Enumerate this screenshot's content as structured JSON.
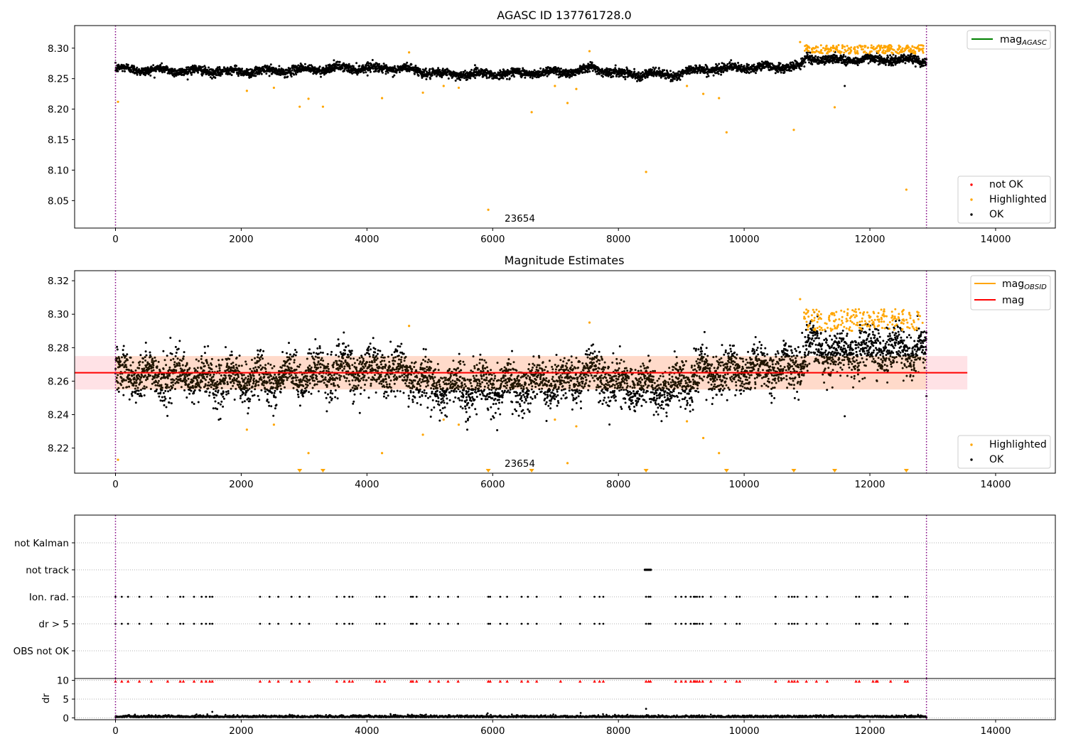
{
  "chart_data": [
    {
      "type": "scatter",
      "title": "AGASC ID 137761728.0",
      "xlim": [
        -650,
        14950
      ],
      "ylim": [
        8.005,
        8.337
      ],
      "xticks": [
        0,
        2000,
        4000,
        6000,
        8000,
        10000,
        12000,
        14000
      ],
      "yticks": [
        8.05,
        8.1,
        8.15,
        8.2,
        8.25,
        8.3
      ],
      "vlines": [
        0,
        12900
      ],
      "annotation": {
        "text": "23654",
        "x": 6200,
        "y": 8.015
      },
      "legend_lines": [
        {
          "label": "mag",
          "sub": "AGASC",
          "color": "#008000"
        }
      ],
      "legend_points": [
        {
          "label": "not OK",
          "color": "#ff0000"
        },
        {
          "label": "Highlighted",
          "color": "#ffa500"
        },
        {
          "label": "OK",
          "color": "#000000"
        }
      ],
      "ok_band": {
        "x_start": 0,
        "x_end": 12900,
        "trend": [
          [
            0,
            8.266
          ],
          [
            1500,
            8.262
          ],
          [
            2500,
            8.262
          ],
          [
            3700,
            8.268
          ],
          [
            4600,
            8.266
          ],
          [
            5200,
            8.257
          ],
          [
            6500,
            8.259
          ],
          [
            7300,
            8.262
          ],
          [
            7600,
            8.268
          ],
          [
            8000,
            8.258
          ],
          [
            8500,
            8.258
          ],
          [
            8800,
            8.255
          ],
          [
            9300,
            8.265
          ],
          [
            10000,
            8.268
          ],
          [
            10900,
            8.27
          ],
          [
            11000,
            8.285
          ],
          [
            11400,
            8.28
          ],
          [
            12000,
            8.282
          ],
          [
            12900,
            8.28
          ]
        ],
        "spread": 0.0065
      },
      "ok_points": [
        [
          11600,
          8.238
        ]
      ],
      "highlighted": [
        [
          40,
          8.212
        ],
        [
          2090,
          8.23
        ],
        [
          2520,
          8.235
        ],
        [
          2930,
          8.204
        ],
        [
          3070,
          8.217
        ],
        [
          3300,
          8.204
        ],
        [
          4240,
          8.218
        ],
        [
          4670,
          8.293
        ],
        [
          4890,
          8.227
        ],
        [
          5220,
          8.238
        ],
        [
          5460,
          8.235
        ],
        [
          5930,
          8.035
        ],
        [
          6620,
          8.195
        ],
        [
          6990,
          8.238
        ],
        [
          7190,
          8.21
        ],
        [
          7330,
          8.233
        ],
        [
          7540,
          8.295
        ],
        [
          8440,
          8.097
        ],
        [
          9090,
          8.238
        ],
        [
          9350,
          8.225
        ],
        [
          9600,
          8.218
        ],
        [
          9720,
          8.162
        ],
        [
          10790,
          8.166
        ],
        [
          10890,
          8.31
        ],
        [
          11440,
          8.203
        ],
        [
          12580,
          8.068
        ]
      ],
      "highlighted_cluster": {
        "x_start": 10950,
        "x_end": 12850,
        "y_min": 8.291,
        "y_max": 8.305
      }
    },
    {
      "type": "scatter",
      "title": "Magnitude Estimates",
      "xlim": [
        -650,
        14950
      ],
      "ylim": [
        8.205,
        8.326
      ],
      "xticks": [
        0,
        2000,
        4000,
        6000,
        8000,
        10000,
        12000,
        14000
      ],
      "yticks": [
        8.22,
        8.24,
        8.26,
        8.28,
        8.3,
        8.32
      ],
      "vlines": [
        0,
        12900
      ],
      "annotation": {
        "text": "23654",
        "x": 6200,
        "y": 8.209
      },
      "mean_line": {
        "y": 8.265,
        "x_start": -650,
        "x_end": 13550,
        "color": "#ff0000"
      },
      "band": {
        "y_low": 8.255,
        "y_high": 8.275,
        "x_start": -650,
        "x_end": 13550
      },
      "legend_lines": [
        {
          "label": "mag",
          "sub": "OBSID",
          "color": "#ffa500"
        },
        {
          "label": "mag",
          "sub": "",
          "color": "#ff0000"
        }
      ],
      "legend_points": [
        {
          "label": "Highlighted",
          "color": "#ffa500"
        },
        {
          "label": "OK",
          "color": "#000000"
        }
      ],
      "low_markers_x": [
        2930,
        3300,
        5930,
        6620,
        8440,
        9720,
        10790,
        11440,
        12580
      ],
      "highlighted": [
        [
          40,
          8.213
        ],
        [
          2090,
          8.231
        ],
        [
          2520,
          8.234
        ],
        [
          3070,
          8.217
        ],
        [
          4240,
          8.217
        ],
        [
          4670,
          8.293
        ],
        [
          4890,
          8.228
        ],
        [
          5220,
          8.237
        ],
        [
          5460,
          8.234
        ],
        [
          6990,
          8.237
        ],
        [
          7190,
          8.211
        ],
        [
          7330,
          8.233
        ],
        [
          7540,
          8.295
        ],
        [
          9090,
          8.236
        ],
        [
          9350,
          8.226
        ],
        [
          9600,
          8.217
        ],
        [
          10890,
          8.309
        ]
      ],
      "ok_points": [
        [
          11600,
          8.239
        ],
        [
          12900,
          8.251
        ]
      ]
    },
    {
      "type": "scatter",
      "title": "",
      "xlim": [
        -650,
        14950
      ],
      "categories": [
        "not Kalman",
        "not track",
        "Ion. rad.",
        "dr > 5",
        "OBS not OK"
      ],
      "vlines": [
        0,
        12900
      ],
      "flag_x": [
        0,
        100,
        200,
        380,
        570,
        830,
        1030,
        1080,
        1250,
        1370,
        1440,
        1500,
        1540,
        2300,
        2450,
        2590,
        2800,
        2930,
        3080,
        3520,
        3640,
        3720,
        3770,
        4150,
        4200,
        4280,
        4700,
        4730,
        4790,
        5000,
        5140,
        5290,
        5450,
        5930,
        5960,
        6120,
        6230,
        6460,
        6560,
        6700,
        7080,
        7390,
        7620,
        7700,
        7760,
        8440,
        8480,
        8510,
        8910,
        9000,
        9070,
        9150,
        9200,
        9220,
        9250,
        9290,
        9340,
        9470,
        9700,
        9880,
        9930,
        10500,
        10710,
        10760,
        10800,
        10850,
        10990,
        11150,
        11320,
        11780,
        11830,
        12050,
        12100,
        12120,
        12330,
        12560,
        12600
      ],
      "not_track": {
        "x_start": 8420,
        "x_end": 8520
      }
    },
    {
      "type": "scatter",
      "title": "",
      "ylabel": "dr",
      "xlim": [
        -650,
        14950
      ],
      "ylim": [
        -0.5,
        10.5
      ],
      "xticks": [
        0,
        2000,
        4000,
        6000,
        8000,
        10000,
        12000,
        14000
      ],
      "yticks": [
        0,
        5,
        10
      ],
      "vlines": [
        0,
        12900
      ],
      "outliers": [
        [
          1540,
          1.6
        ],
        [
          5920,
          1.2
        ],
        [
          8440,
          2.4
        ],
        [
          7400,
          1.3
        ]
      ]
    }
  ]
}
